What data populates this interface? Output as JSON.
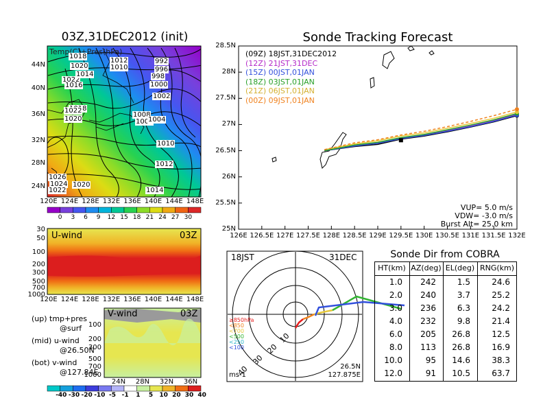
{
  "map_panel": {
    "title": "03Z,31DEC2012 (init)",
    "inner_label": "Temp(C)+Pres(hPa)",
    "lat_ticks": [
      "44N",
      "40N",
      "36N",
      "32N",
      "28N",
      "24N"
    ],
    "lon_ticks": [
      "120E",
      "124E",
      "128E",
      "132E",
      "136E",
      "140E",
      "144E",
      "148E"
    ],
    "isobar_labels": [
      "1018",
      "1020",
      "1022",
      "1016",
      "1014",
      "1012",
      "1010",
      "992",
      "996",
      "998",
      "1000",
      "1002",
      "1018",
      "1022",
      "1020",
      "1008",
      "1006",
      "1004",
      "1010",
      "1012",
      "1014",
      "1026",
      "1024",
      "1020",
      "1022"
    ],
    "colorbar_labels": [
      "0",
      "3",
      "6",
      "9",
      "12",
      "15",
      "18",
      "21",
      "24",
      "27",
      "30"
    ],
    "colorbar_colors": [
      "#9600c8",
      "#7840dc",
      "#4656f0",
      "#1e8cf0",
      "#00b4dc",
      "#00c896",
      "#28d250",
      "#8cdc28",
      "#dcdc14",
      "#f0aa14",
      "#f06414",
      "#dc2828"
    ]
  },
  "uwind_panel": {
    "label": "U-wind",
    "time": "03Z",
    "pressure_ticks": [
      "30",
      "50",
      "100",
      "200",
      "300",
      "500",
      "700",
      "1000"
    ],
    "lon_ticks": [
      "120E",
      "124E",
      "128E",
      "132E",
      "136E",
      "140E",
      "144E",
      "148E"
    ]
  },
  "vwind_panel": {
    "label": "V-wind",
    "time": "03Z",
    "pressure_ticks": [
      "100",
      "200",
      "300",
      "500",
      "700",
      "1000"
    ],
    "lat_ticks": [
      "24N",
      "28N",
      "32N",
      "36N"
    ],
    "colorbar_labels": [
      "-40",
      "-30",
      "-20",
      "-10",
      "-5",
      "-1",
      "1",
      "5",
      "10",
      "20",
      "30",
      "40"
    ],
    "colorbar_colors": [
      "#00c8c8",
      "#14a0dc",
      "#1e6ef0",
      "#3c3cdc",
      "#7878f0",
      "#b4b4f8",
      "#ffffff",
      "#c8f0a0",
      "#e6e650",
      "#f0b428",
      "#f06e14",
      "#dc1e1e"
    ]
  },
  "legend_notes": [
    {
      "head": "(up) tmp+pres",
      "sub": "@surf"
    },
    {
      "head": "(mid) u-wind",
      "sub": "@26.50N"
    },
    {
      "head": "(bot) v-wind",
      "sub": "@127.84E"
    }
  ],
  "tracking": {
    "title": "Sonde Tracking Forecast",
    "y_ticks": [
      "28.5N",
      "28N",
      "27.5N",
      "27N",
      "26.5N",
      "26N",
      "25.5N",
      "25N"
    ],
    "x_ticks": [
      "126E",
      "126.5E",
      "127E",
      "127.5E",
      "128E",
      "128.5E",
      "129E",
      "129.5E",
      "130E",
      "130.5E",
      "131E",
      "131.5E",
      "132E"
    ],
    "params": [
      "VUP= 5.0 m/s",
      "VDW= -3.0 m/s",
      "Burst Alt= 25.0 km"
    ]
  },
  "polar": {
    "local_time": "18JST",
    "date": "31DEC",
    "ring_labels": [
      "10",
      "20",
      "30",
      "40"
    ],
    "legend": [
      {
        "label": "≥850hPa",
        "color": "#e61e1e"
      },
      {
        "label": "<850",
        "color": "#f0821e"
      },
      {
        "label": "<700",
        "color": "#e6c83c"
      },
      {
        "label": "<500",
        "color": "#32b432"
      },
      {
        "label": "<250",
        "color": "#28b4c8"
      },
      {
        "label": "<100",
        "color": "#3250dc"
      }
    ],
    "unit": "ms-1",
    "lat": "26.5N",
    "lon": "127.875E"
  },
  "table": {
    "title": "Sonde Dir from COBRA",
    "headers": [
      "HT(km)",
      "AZ(deg)",
      "EL(deg)",
      "RNG(km)"
    ],
    "rows": [
      [
        "1.0",
        "242",
        "1.5",
        "24.6"
      ],
      [
        "2.0",
        "240",
        "3.7",
        "25.2"
      ],
      [
        "3.0",
        "236",
        "6.3",
        "24.2"
      ],
      [
        "4.0",
        "232",
        "9.8",
        "21.4"
      ],
      [
        "6.0",
        "205",
        "26.8",
        "12.5"
      ],
      [
        "8.0",
        "113",
        "26.8",
        "16.9"
      ],
      [
        "10.0",
        "95",
        "14.6",
        "38.3"
      ],
      [
        "12.0",
        "91",
        "10.5",
        "63.7"
      ]
    ]
  },
  "chart_data": [
    {
      "type": "line",
      "title": "Sonde Tracking Forecast",
      "xlabel": "",
      "ylabel": "",
      "xlim": [
        126,
        132
      ],
      "ylim": [
        25,
        28.5
      ],
      "series": [
        {
          "name": "(09Z) 18JST,31DEC2012",
          "color": "#000000",
          "dash": "none",
          "points": [
            [
              127.85,
              26.5
            ],
            [
              128.5,
              26.58
            ],
            [
              129.0,
              26.62
            ],
            [
              129.5,
              26.72
            ],
            [
              130.0,
              26.78
            ],
            [
              130.5,
              26.86
            ],
            [
              131.0,
              26.95
            ],
            [
              131.5,
              27.05
            ],
            [
              132.0,
              27.17
            ]
          ]
        },
        {
          "name": "(12Z) 21JST,31DEC",
          "color": "#b428c8",
          "dash": "none",
          "points": [
            [
              127.85,
              26.5
            ],
            [
              128.5,
              26.6
            ],
            [
              129.0,
              26.65
            ],
            [
              129.5,
              26.74
            ],
            [
              130.0,
              26.8
            ],
            [
              130.5,
              26.88
            ],
            [
              131.0,
              26.97
            ],
            [
              131.5,
              27.07
            ],
            [
              132.0,
              27.19
            ]
          ]
        },
        {
          "name": "(15Z) 00JST,01JAN",
          "color": "#3250dc",
          "dash": "none",
          "points": [
            [
              127.85,
              26.5
            ],
            [
              128.5,
              26.59
            ],
            [
              129.0,
              26.64
            ],
            [
              129.5,
              26.73
            ],
            [
              130.0,
              26.79
            ],
            [
              130.5,
              26.87
            ],
            [
              131.0,
              26.96
            ],
            [
              131.5,
              27.06
            ],
            [
              132.0,
              27.18
            ]
          ]
        },
        {
          "name": "(18Z) 03JST,01JAN",
          "color": "#28a028",
          "dash": "none",
          "points": [
            [
              127.85,
              26.5
            ],
            [
              128.5,
              26.61
            ],
            [
              129.0,
              26.66
            ],
            [
              129.5,
              26.75
            ],
            [
              130.0,
              26.81
            ],
            [
              130.5,
              26.9
            ],
            [
              131.0,
              26.99
            ],
            [
              131.5,
              27.09
            ],
            [
              132.0,
              27.21
            ]
          ]
        },
        {
          "name": "(21Z) 06JST,01JAN",
          "color": "#e6c83c",
          "dash": "none",
          "points": [
            [
              127.85,
              26.52
            ],
            [
              128.5,
              26.63
            ],
            [
              129.0,
              26.69
            ],
            [
              129.5,
              26.78
            ],
            [
              130.0,
              26.84
            ],
            [
              130.5,
              26.93
            ],
            [
              131.0,
              27.02
            ],
            [
              131.5,
              27.12
            ],
            [
              132.0,
              27.24
            ]
          ]
        },
        {
          "name": "(00Z) 09JST,01JAN",
          "color": "#f0821e",
          "dash": "dashed",
          "points": [
            [
              127.85,
              26.52
            ],
            [
              128.5,
              26.65
            ],
            [
              129.0,
              26.71
            ],
            [
              129.5,
              26.8
            ],
            [
              130.0,
              26.87
            ],
            [
              130.5,
              26.96
            ],
            [
              131.0,
              27.06
            ],
            [
              131.5,
              27.17
            ],
            [
              132.0,
              27.29
            ]
          ]
        }
      ]
    },
    {
      "type": "table",
      "title": "Sonde Dir from COBRA",
      "columns": [
        "HT(km)",
        "AZ(deg)",
        "EL(deg)",
        "RNG(km)"
      ],
      "rows": [
        [
          1.0,
          242,
          1.5,
          24.6
        ],
        [
          2.0,
          240,
          3.7,
          25.2
        ],
        [
          3.0,
          236,
          6.3,
          24.2
        ],
        [
          4.0,
          232,
          9.8,
          21.4
        ],
        [
          6.0,
          205,
          26.8,
          12.5
        ],
        [
          8.0,
          113,
          26.8,
          16.9
        ],
        [
          10.0,
          95,
          14.6,
          38.3
        ],
        [
          12.0,
          91,
          10.5,
          63.7
        ]
      ]
    }
  ]
}
